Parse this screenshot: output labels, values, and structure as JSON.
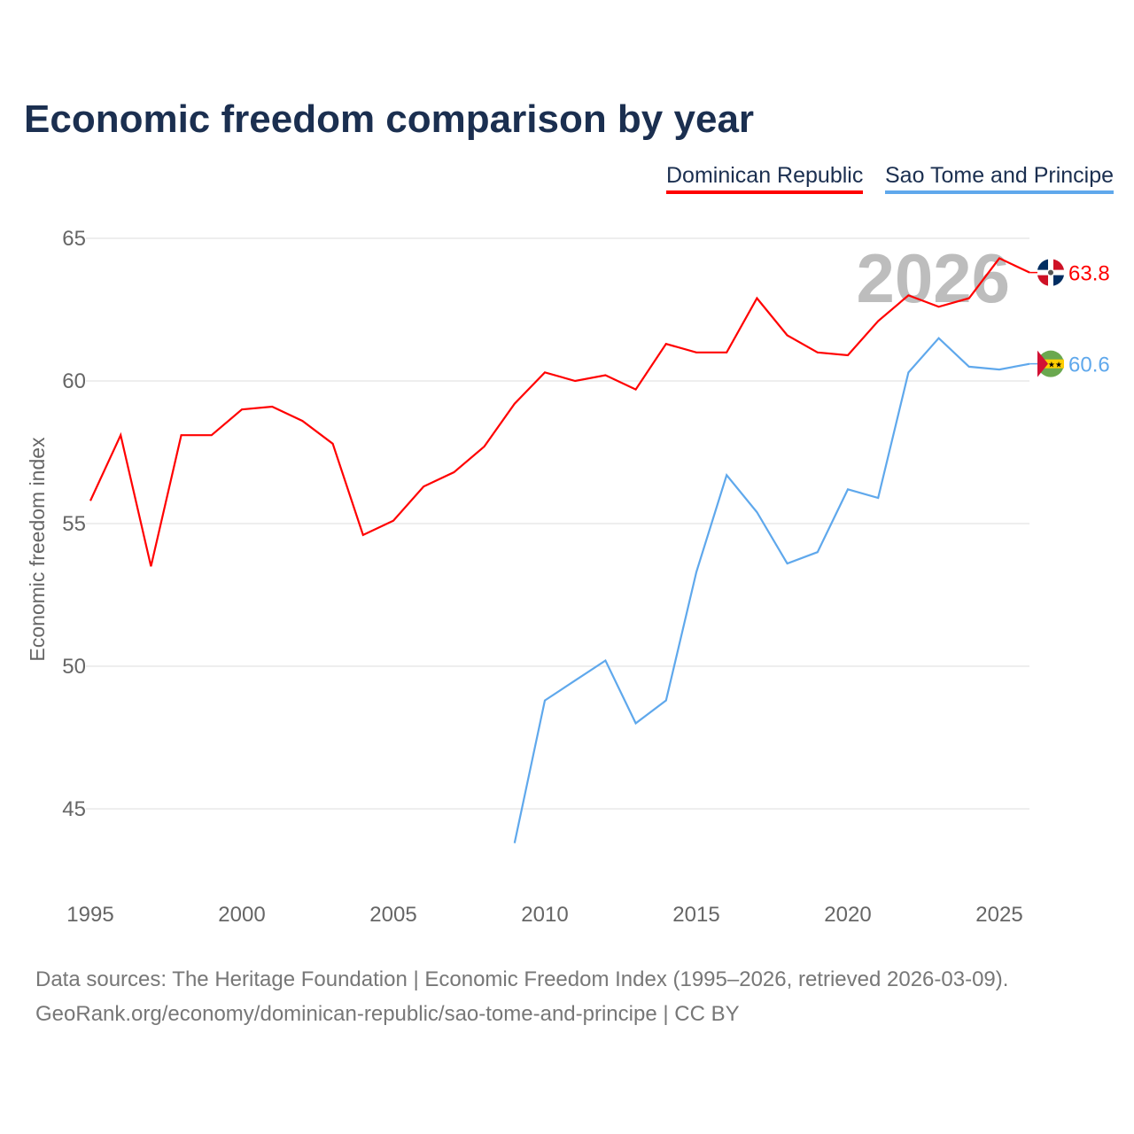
{
  "title": "Economic freedom comparison by year",
  "source_line1": "Data sources: The Heritage Foundation | Economic Freedom Index (1995–2026, retrieved 2026-03-09).",
  "source_line2": "GeoRank.org/economy/dominican-republic/sao-tome-and-principe | CC BY",
  "chart_data": {
    "type": "line",
    "title": "Economic freedom comparison by year",
    "xlabel": "",
    "ylabel": "Economic freedom index",
    "xlim": [
      1995,
      2026
    ],
    "ylim": [
      42,
      66
    ],
    "xticks": [
      1995,
      2000,
      2005,
      2010,
      2015,
      2020,
      2025
    ],
    "yticks": [
      45,
      50,
      55,
      60,
      65
    ],
    "grid": true,
    "year_watermark": "2026",
    "legend_position": "top-right",
    "series": [
      {
        "name": "Dominican Republic",
        "color": "#ff0000",
        "end_label": "63.8",
        "flag": "dominican-republic-flag",
        "x": [
          1995,
          1996,
          1997,
          1998,
          1999,
          2000,
          2001,
          2002,
          2003,
          2004,
          2005,
          2006,
          2007,
          2008,
          2009,
          2010,
          2011,
          2012,
          2013,
          2014,
          2015,
          2016,
          2017,
          2018,
          2019,
          2020,
          2021,
          2022,
          2023,
          2024,
          2025,
          2026
        ],
        "values": [
          55.8,
          58.1,
          53.5,
          58.1,
          58.1,
          59.0,
          59.1,
          58.6,
          57.8,
          54.6,
          55.1,
          56.3,
          56.8,
          57.7,
          59.2,
          60.3,
          60.0,
          60.2,
          59.7,
          61.3,
          61.0,
          61.0,
          62.9,
          61.6,
          61.0,
          60.9,
          62.1,
          63.0,
          62.6,
          62.9,
          64.3,
          63.8
        ]
      },
      {
        "name": "Sao Tome and Principe",
        "color": "#5fa8ec",
        "end_label": "60.6",
        "flag": "sao-tome-flag",
        "x": [
          2009,
          2010,
          2011,
          2012,
          2013,
          2014,
          2015,
          2016,
          2017,
          2018,
          2019,
          2020,
          2021,
          2022,
          2023,
          2024,
          2025,
          2026
        ],
        "values": [
          43.8,
          48.8,
          49.5,
          50.2,
          48.0,
          48.8,
          53.3,
          56.7,
          55.4,
          53.6,
          54.0,
          56.2,
          55.9,
          60.3,
          61.5,
          60.5,
          60.4,
          60.6
        ]
      }
    ]
  }
}
